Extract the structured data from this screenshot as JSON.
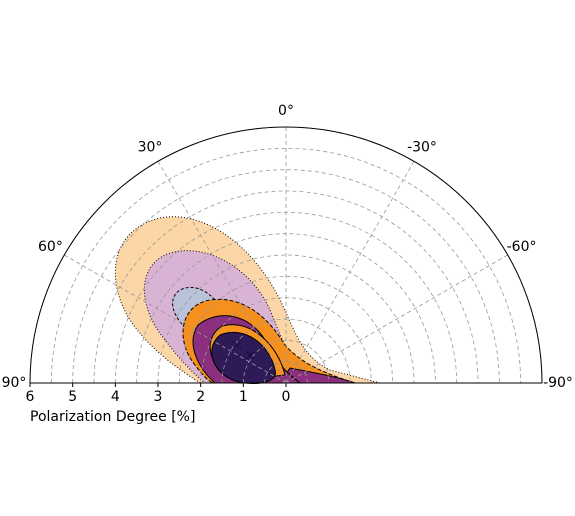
{
  "chart_data": {
    "type": "polar-contour",
    "xlabel": "Polarization Degree [%]",
    "thetalim": [
      -90,
      90
    ],
    "thetaticks": [
      {
        "value": 90,
        "label": "90°"
      },
      {
        "value": 60,
        "label": "60°"
      },
      {
        "value": 30,
        "label": "30°"
      },
      {
        "value": 0,
        "label": "0°"
      },
      {
        "value": -30,
        "label": "-30°"
      },
      {
        "value": -60,
        "label": "-60°"
      },
      {
        "value": -90,
        "label": "-90°"
      }
    ],
    "rlim": [
      0,
      6
    ],
    "rticks": [
      6,
      5,
      4,
      3,
      2,
      1,
      0
    ],
    "rgrid": [
      0.5,
      1,
      1.5,
      2,
      2.5,
      3,
      3.5,
      4,
      4.5,
      5,
      5.5,
      6
    ],
    "grid": true
  }
}
